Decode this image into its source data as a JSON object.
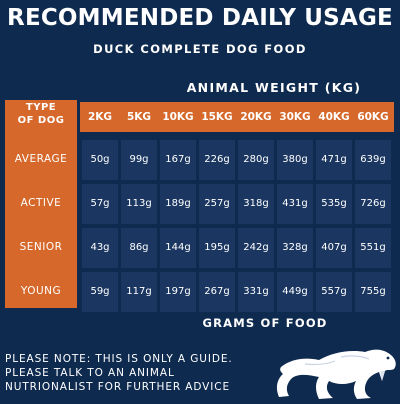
{
  "header": {
    "title": "RECOMMENDED DAILY USAGE",
    "subtitle": "DUCK COMPLETE DOG FOOD"
  },
  "table": {
    "weight_label": "ANIMAL WEIGHT (KG)",
    "type_header_line1": "TYPE",
    "type_header_line2": "OF DOG",
    "weights": [
      "2KG",
      "5KG",
      "10KG",
      "15KG",
      "20KG",
      "30KG",
      "40KG",
      "60KG"
    ],
    "rows": [
      {
        "label": "AVERAGE",
        "values": [
          "50g",
          "99g",
          "167g",
          "226g",
          "280g",
          "380g",
          "471g",
          "639g"
        ]
      },
      {
        "label": "ACTIVE",
        "values": [
          "57g",
          "113g",
          "189g",
          "257g",
          "318g",
          "431g",
          "535g",
          "726g"
        ]
      },
      {
        "label": "SENIOR",
        "values": [
          "43g",
          "86g",
          "144g",
          "195g",
          "242g",
          "328g",
          "407g",
          "551g"
        ]
      },
      {
        "label": "YOUNG",
        "values": [
          "59g",
          "117g",
          "197g",
          "267g",
          "331g",
          "449g",
          "557g",
          "755g"
        ]
      }
    ],
    "footer_label": "GRAMS OF FOOD"
  },
  "note": {
    "line1": "PLEASE NOTE: THIS IS ONLY A GUIDE.",
    "line2": "PLEASE TALK TO AN ANIMAL",
    "line3": "NUTRIONALIST FOR FURTHER ADVICE"
  },
  "colors": {
    "background": "#0f2a4f",
    "accent": "#d5682a",
    "cell": "#1b3761",
    "text": "#ffffff"
  },
  "logo_icon": "sabre-tooth-cat-icon"
}
